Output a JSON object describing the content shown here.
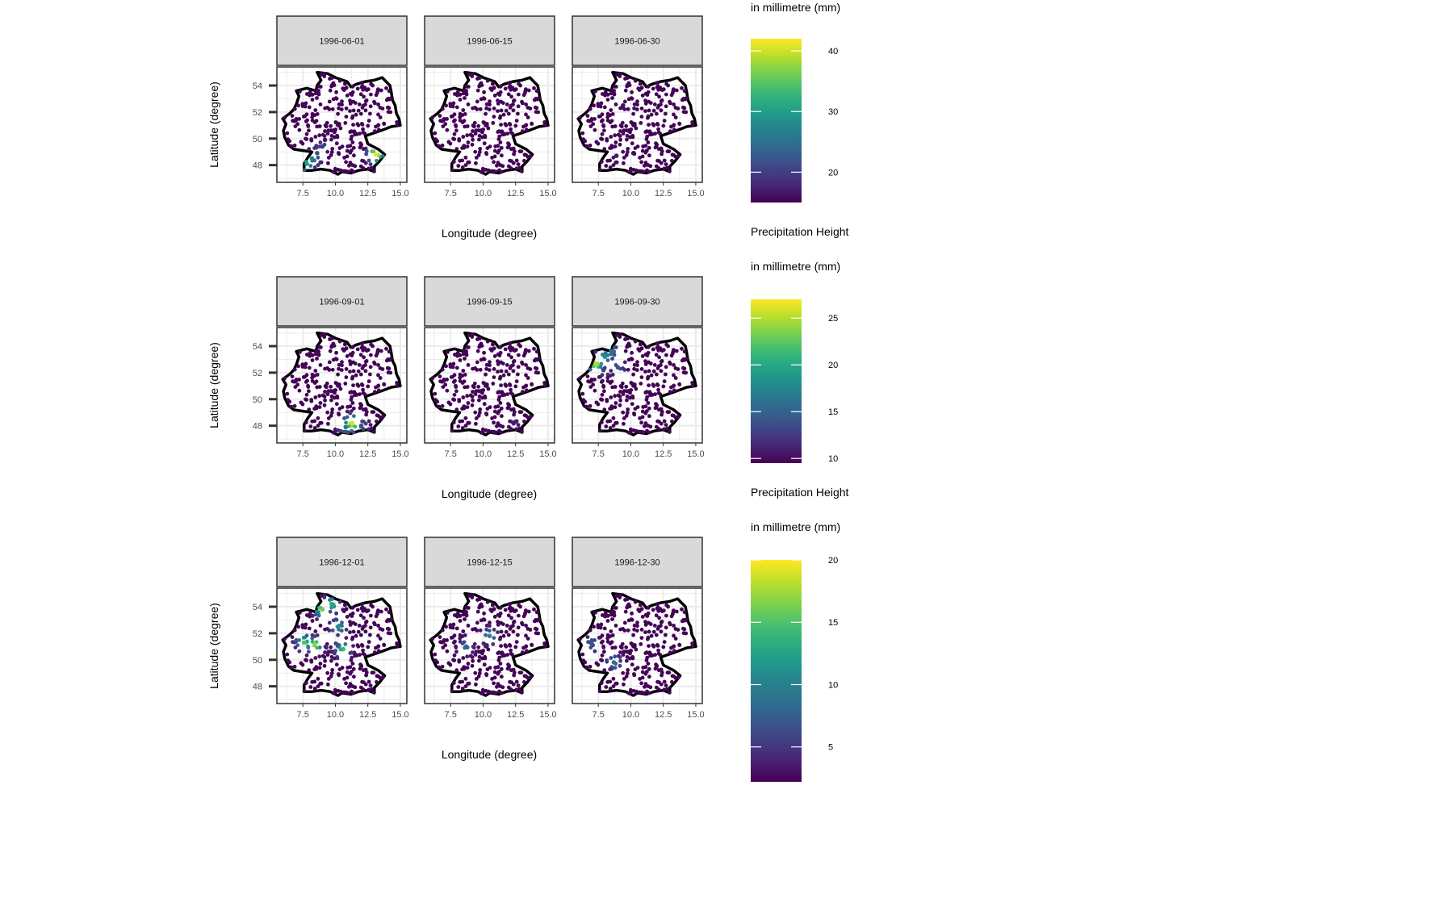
{
  "chart_data": [
    {
      "type": "scatter",
      "facets": [
        "1996-06-01",
        "1996-06-15",
        "1996-06-30"
      ],
      "xlabel": "Longitude (degree)",
      "ylabel": "Latitude (degree)",
      "xticks": [
        "7.5",
        "10.0",
        "12.5",
        "15.0"
      ],
      "yticks": [
        "54",
        "52",
        "50",
        "48"
      ],
      "xlim": [
        5.5,
        15.5
      ],
      "ylim": [
        46.7,
        55.4
      ],
      "legend": {
        "title_lines": [
          "in millimetre (mm)"
        ],
        "range": [
          15,
          42
        ],
        "ticks": [
          40,
          30,
          20
        ]
      },
      "hotspots": [
        [
          {
            "x": 7.8,
            "y": 48.1,
            "v": 30
          },
          {
            "x": 8.2,
            "y": 48.5,
            "v": 27
          },
          {
            "x": 8.6,
            "y": 48.9,
            "v": 22
          },
          {
            "x": 9.0,
            "y": 49.4,
            "v": 20
          },
          {
            "x": 13.1,
            "y": 48.8,
            "v": 41
          },
          {
            "x": 9.2,
            "y": 49.9,
            "v": 17
          }
        ],
        [],
        [
          {
            "x": 8.9,
            "y": 48.7,
            "v": 17
          },
          {
            "x": 10.2,
            "y": 48.9,
            "v": 16
          },
          {
            "x": 9.4,
            "y": 52.5,
            "v": 16
          }
        ]
      ]
    },
    {
      "type": "scatter",
      "facets": [
        "1996-09-01",
        "1996-09-15",
        "1996-09-30"
      ],
      "xlabel": "Longitude (degree)",
      "ylabel": "Latitude (degree)",
      "xticks": [
        "7.5",
        "10.0",
        "12.5",
        "15.0"
      ],
      "yticks": [
        "54",
        "52",
        "50",
        "48"
      ],
      "xlim": [
        5.5,
        15.5
      ],
      "ylim": [
        46.7,
        55.4
      ],
      "legend": {
        "title_lines": [
          "Precipitation Height",
          "in millimetre (mm)"
        ],
        "range": [
          9.5,
          27
        ],
        "ticks": [
          25,
          20,
          15,
          10
        ]
      },
      "hotspots": [
        [
          {
            "x": 11.3,
            "y": 48.2,
            "v": 26
          },
          {
            "x": 10.8,
            "y": 47.9,
            "v": 16
          },
          {
            "x": 12.0,
            "y": 48.0,
            "v": 14
          }
        ],
        [
          {
            "x": 12.5,
            "y": 48.3,
            "v": 11
          }
        ],
        [
          {
            "x": 7.3,
            "y": 52.7,
            "v": 25
          },
          {
            "x": 8.0,
            "y": 53.2,
            "v": 18
          },
          {
            "x": 8.5,
            "y": 53.6,
            "v": 16
          },
          {
            "x": 9.0,
            "y": 52.4,
            "v": 14
          },
          {
            "x": 7.9,
            "y": 52.2,
            "v": 13
          }
        ]
      ]
    },
    {
      "type": "scatter",
      "facets": [
        "1996-12-01",
        "1996-12-15",
        "1996-12-30"
      ],
      "xlabel": "Longitude (degree)",
      "ylabel": "Latitude (degree)",
      "xticks": [
        "7.5",
        "10.0",
        "12.5",
        "15.0"
      ],
      "yticks": [
        "54",
        "52",
        "50",
        "48"
      ],
      "xlim": [
        5.5,
        15.5
      ],
      "ylim": [
        46.7,
        55.4
      ],
      "legend": {
        "title_lines": [
          "Precipitation Height",
          "in millimetre (mm)"
        ],
        "range": [
          2.2,
          20
        ],
        "ticks": [
          20,
          15,
          10,
          5
        ]
      },
      "hotspots": [
        [
          {
            "x": 9.0,
            "y": 53.8,
            "v": 16
          },
          {
            "x": 9.7,
            "y": 54.2,
            "v": 13
          },
          {
            "x": 7.6,
            "y": 51.3,
            "v": 15
          },
          {
            "x": 8.4,
            "y": 51.1,
            "v": 17
          },
          {
            "x": 10.6,
            "y": 50.8,
            "v": 14
          },
          {
            "x": 10.2,
            "y": 52.5,
            "v": 11
          }
        ],
        [
          {
            "x": 10.5,
            "y": 51.8,
            "v": 10
          },
          {
            "x": 8.7,
            "y": 51.0,
            "v": 8
          }
        ],
        [
          {
            "x": 8.7,
            "y": 49.8,
            "v": 9
          },
          {
            "x": 7.0,
            "y": 51.2,
            "v": 7
          }
        ]
      ]
    }
  ]
}
